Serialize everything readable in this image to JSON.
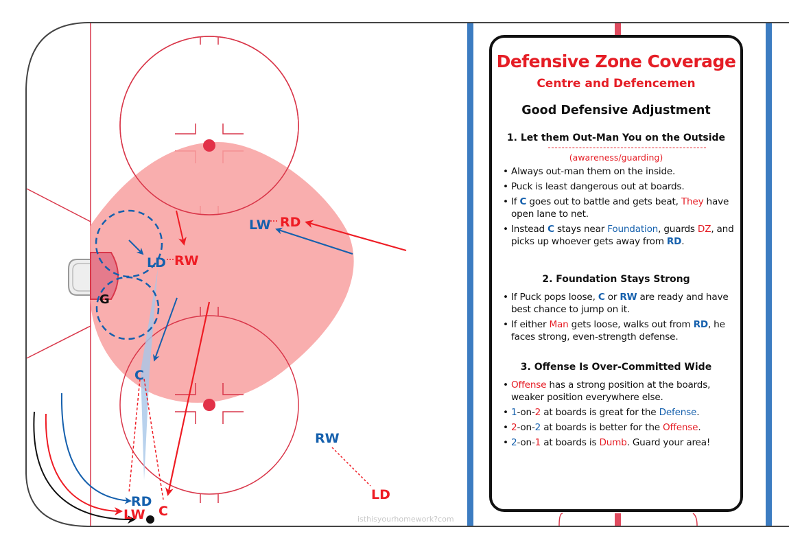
{
  "panel": {
    "title": "Defensive Zone Coverage",
    "subtitle": "Centre and Defencemen",
    "heading": "Good Defensive Adjustment",
    "sections": [
      {
        "title": "1. Let them Out-Man You on the Outside",
        "note": "(awareness/guarding)",
        "bullets": [
          [
            {
              "t": "Always out-man them on the inside."
            }
          ],
          [
            {
              "t": "Puck is least dangerous out at boards."
            }
          ],
          [
            {
              "t": "If "
            },
            {
              "t": "C",
              "c": "blue",
              "b": true
            },
            {
              "t": " goes out to battle and gets beat, "
            },
            {
              "t": "They",
              "c": "red"
            },
            {
              "t": " have open lane to net."
            }
          ],
          [
            {
              "t": "Instead "
            },
            {
              "t": "C",
              "c": "blue",
              "b": true
            },
            {
              "t": " stays near "
            },
            {
              "t": "Foundation",
              "c": "blue"
            },
            {
              "t": ", guards "
            },
            {
              "t": "DZ",
              "c": "red"
            },
            {
              "t": ", and picks up whoever gets away from "
            },
            {
              "t": "RD",
              "c": "blue",
              "b": true
            },
            {
              "t": "."
            }
          ]
        ]
      },
      {
        "title": "2. Foundation Stays Strong",
        "bullets": [
          [
            {
              "t": "If Puck pops loose, "
            },
            {
              "t": "C",
              "c": "blue",
              "b": true
            },
            {
              "t": " or "
            },
            {
              "t": "RW",
              "c": "blue",
              "b": true
            },
            {
              "t": " are ready and have best chance to jump on it."
            }
          ],
          [
            {
              "t": "If either "
            },
            {
              "t": "Man",
              "c": "red"
            },
            {
              "t": " gets loose, walks out from "
            },
            {
              "t": "RD",
              "c": "blue",
              "b": true
            },
            {
              "t": ", he faces strong, even-strength defense."
            }
          ]
        ]
      },
      {
        "title": "3. Offense Is Over-Committed Wide",
        "bullets": [
          [
            {
              "t": "Offense",
              "c": "red"
            },
            {
              "t": " has a strong position at the boards, weaker position everywhere else."
            }
          ],
          [
            {
              "t": "1",
              "c": "blue"
            },
            {
              "t": "-on-"
            },
            {
              "t": "2",
              "c": "red"
            },
            {
              "t": " at boards is great for the "
            },
            {
              "t": "Defense",
              "c": "blue"
            },
            {
              "t": "."
            }
          ],
          [
            {
              "t": "2",
              "c": "red"
            },
            {
              "t": "-on-"
            },
            {
              "t": "2",
              "c": "blue"
            },
            {
              "t": "  at boards is better for the "
            },
            {
              "t": "Offense",
              "c": "red"
            },
            {
              "t": "."
            }
          ],
          [
            {
              "t": "2",
              "c": "blue"
            },
            {
              "t": "-on-"
            },
            {
              "t": "1",
              "c": "red"
            },
            {
              "t": " at boards is "
            },
            {
              "t": "Dumb",
              "c": "red"
            },
            {
              "t": ". Guard your area!"
            }
          ]
        ]
      }
    ]
  },
  "players": {
    "ld_top": "LD",
    "rw_top": "RW",
    "lw_top": "LW",
    "rd_top": "RD",
    "goalie": "G",
    "centre_mid": "C",
    "rw_bottom": "RW",
    "ld_bottom": "LD",
    "rd_bottom": "RD",
    "lw_bottom": "LW",
    "c_bottom": "C"
  },
  "watermark": "isthisyourhomework?com",
  "colors": {
    "blue": "#1560ad",
    "red": "#ee1c24",
    "zone": "#f8a0a0",
    "rink_line": "#d9374a",
    "blue_line": "#3c7cc1"
  }
}
